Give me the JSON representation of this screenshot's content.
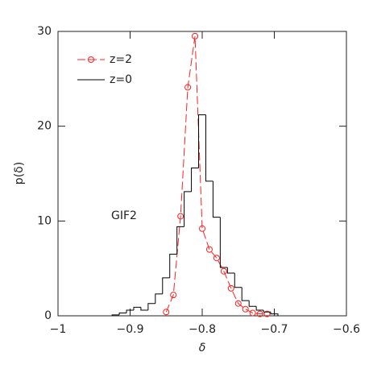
{
  "chart_data": {
    "type": "histogram-line",
    "xlabel": "δ",
    "ylabel": "p(δ)",
    "annotation": "GIF2",
    "xlim": [
      -1,
      -0.6
    ],
    "ylim": [
      0,
      30
    ],
    "xticks": [
      {
        "value": -1,
        "label": "−1"
      },
      {
        "value": -0.9,
        "label": "−0.9"
      },
      {
        "value": -0.8,
        "label": "−0.8"
      },
      {
        "value": -0.7,
        "label": "−0.7"
      },
      {
        "value": -0.6,
        "label": "−0.6"
      }
    ],
    "yticks": [
      0,
      10,
      20,
      30
    ],
    "legend": "upper left",
    "series": [
      {
        "name": "z=2",
        "color": "#ff2020",
        "kind": "line",
        "x": [
          -0.85,
          -0.84,
          -0.83,
          -0.82,
          -0.81,
          -0.8,
          -0.79,
          -0.78,
          -0.77,
          -0.76,
          -0.75,
          -0.74,
          -0.73,
          -0.72,
          -0.71
        ],
        "values": [
          0.4,
          2.2,
          10.5,
          24.1,
          29.5,
          9.2,
          7.0,
          6.1,
          4.7,
          2.9,
          1.3,
          0.7,
          0.3,
          0.2,
          0.2
        ]
      },
      {
        "name": "z=0",
        "color": "#000000",
        "kind": "step",
        "bins": [
          -0.925,
          -0.915,
          -0.905,
          -0.895,
          -0.885,
          -0.875,
          -0.865,
          -0.855,
          -0.845,
          -0.835,
          -0.825,
          -0.815,
          -0.805,
          -0.795,
          -0.785,
          -0.775,
          -0.765,
          -0.755,
          -0.745,
          -0.735,
          -0.725,
          -0.715,
          -0.705,
          -0.695
        ],
        "values": [
          0.1,
          0.3,
          0.6,
          0.9,
          0.6,
          1.3,
          2.3,
          4.0,
          6.5,
          9.4,
          13.1,
          15.6,
          21.2,
          14.2,
          10.4,
          5.1,
          4.5,
          3.0,
          1.6,
          1.0,
          0.6,
          0.4,
          0.2
        ]
      }
    ]
  }
}
